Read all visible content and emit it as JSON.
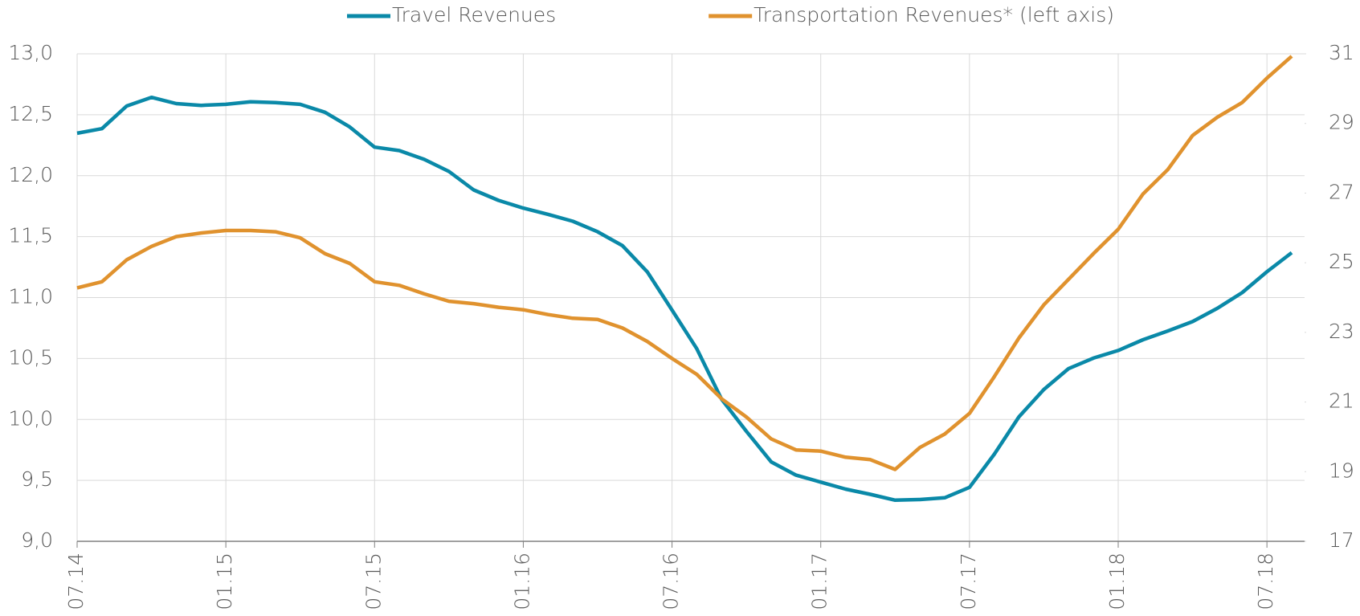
{
  "chart_data": {
    "type": "line",
    "categories": [
      "07.14",
      null,
      null,
      null,
      null,
      null,
      "01.15",
      null,
      null,
      null,
      null,
      null,
      "07.15",
      null,
      null,
      null,
      null,
      null,
      "01.16",
      null,
      null,
      null,
      null,
      null,
      "07.16",
      null,
      null,
      null,
      null,
      null,
      "01.17",
      null,
      null,
      null,
      null,
      null,
      "07.17",
      null,
      null,
      null,
      null,
      null,
      "01.18",
      null,
      null,
      null,
      null,
      null,
      "07.18",
      null
    ],
    "series": [
      {
        "name": "Travel Revenues",
        "color": "#0a89a8",
        "axis": "y2",
        "values": [
          28.72,
          28.85,
          29.5,
          29.75,
          29.57,
          29.52,
          29.55,
          29.62,
          29.6,
          29.55,
          29.32,
          28.9,
          28.32,
          28.22,
          27.97,
          27.62,
          27.09,
          26.79,
          26.57,
          26.39,
          26.19,
          25.89,
          25.49,
          24.74,
          23.64,
          22.53,
          21.08,
          20.16,
          19.28,
          18.9,
          18.7,
          18.5,
          18.35,
          18.18,
          18.2,
          18.25,
          18.55,
          19.5,
          20.58,
          21.36,
          21.96,
          22.26,
          22.48,
          22.79,
          23.04,
          23.31,
          23.69,
          24.14,
          24.74,
          25.29
        ]
      },
      {
        "name": "Transportation Revenues* (left axis)",
        "color": "#e0922e",
        "values": [
          11.08,
          11.13,
          11.31,
          11.42,
          11.5,
          11.53,
          11.55,
          11.55,
          11.54,
          11.49,
          11.36,
          11.28,
          11.13,
          11.1,
          11.03,
          10.97,
          10.95,
          10.92,
          10.9,
          10.86,
          10.83,
          10.82,
          10.75,
          10.64,
          10.5,
          10.37,
          10.17,
          10.02,
          9.84,
          9.75,
          9.74,
          9.69,
          9.67,
          9.59,
          9.77,
          9.88,
          10.05,
          10.35,
          10.67,
          10.94,
          11.15,
          11.36,
          11.56,
          11.85,
          12.05,
          12.33,
          12.48,
          12.6,
          12.8,
          12.98
        ]
      }
    ],
    "ylim": [
      9,
      13
    ],
    "yticks": [
      {
        "value": 9,
        "label": "9,0"
      },
      {
        "value": 9.5,
        "label": "9,5"
      },
      {
        "value": 10,
        "label": "10,0"
      },
      {
        "value": 10.5,
        "label": "10,5"
      },
      {
        "value": 11,
        "label": "11,0"
      },
      {
        "value": 11.5,
        "label": "11,5"
      },
      {
        "value": 12,
        "label": "12,0"
      },
      {
        "value": 12.5,
        "label": "12,5"
      },
      {
        "value": 13,
        "label": "13,0"
      }
    ],
    "y2lim": [
      17,
      31
    ],
    "y2ticks": [
      17,
      19,
      21,
      23,
      25,
      27,
      29,
      31
    ],
    "grid": true,
    "legend": "top"
  }
}
